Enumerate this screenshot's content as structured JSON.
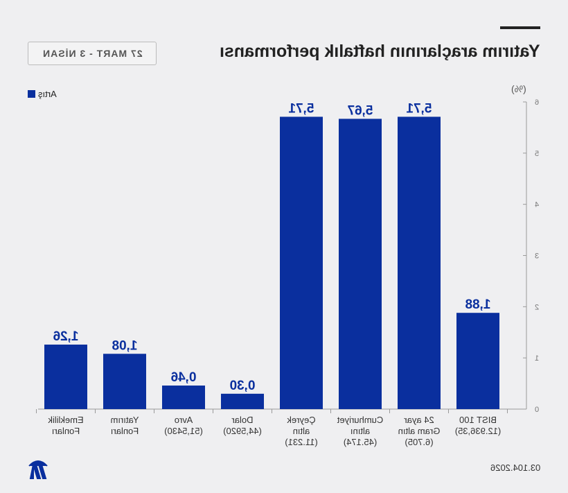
{
  "header": {
    "title": "Yatırım araçlarının haftalık performansı",
    "date_range": "27 MART - 3 NİSAN"
  },
  "footer": {
    "date": "03.104.2026",
    "logo": "AA"
  },
  "chart_data": {
    "type": "bar",
    "unit": "(%)",
    "legend": "Artış",
    "legend_position": "top-left",
    "colors": {
      "bar": "#0a2f9e",
      "label": "#0a2f9e"
    },
    "categories": [
      "Emeklilik Fonları",
      "Yatırım Fonları",
      "Avro (51,5430)",
      "Dolar (44,5920)",
      "Çeyrek altın (11.231)",
      "Cumhuriyet altını (45.174)",
      "24 ayar Gram altın (6.705)",
      "BIST 100 (12.936,35)"
    ],
    "category_lines": [
      [
        "Emeklilik",
        "Fonları"
      ],
      [
        "Yatırım",
        "Fonları"
      ],
      [
        "Avro",
        "(51,5430)"
      ],
      [
        "Dolar",
        "(44,5920)"
      ],
      [
        "Çeyrek",
        "altın",
        "(11.231)"
      ],
      [
        "Cumhuriyet",
        "altını",
        "(45.174)"
      ],
      [
        "24 ayar",
        "Gram altın",
        "(6.705)"
      ],
      [
        "BIST 100",
        "(12.936,35)"
      ]
    ],
    "values": [
      1.26,
      1.08,
      0.46,
      0.3,
      5.71,
      5.67,
      5.71,
      1.88
    ],
    "value_labels": [
      "1,26",
      "1,08",
      "0,46",
      "0,30",
      "5,71",
      "5,67",
      "5,71",
      "1,88"
    ],
    "ylim": [
      0,
      6
    ],
    "yticks": [
      0,
      1,
      2,
      3,
      4,
      5,
      6
    ],
    "y_axis_side": "right",
    "grid": false
  }
}
